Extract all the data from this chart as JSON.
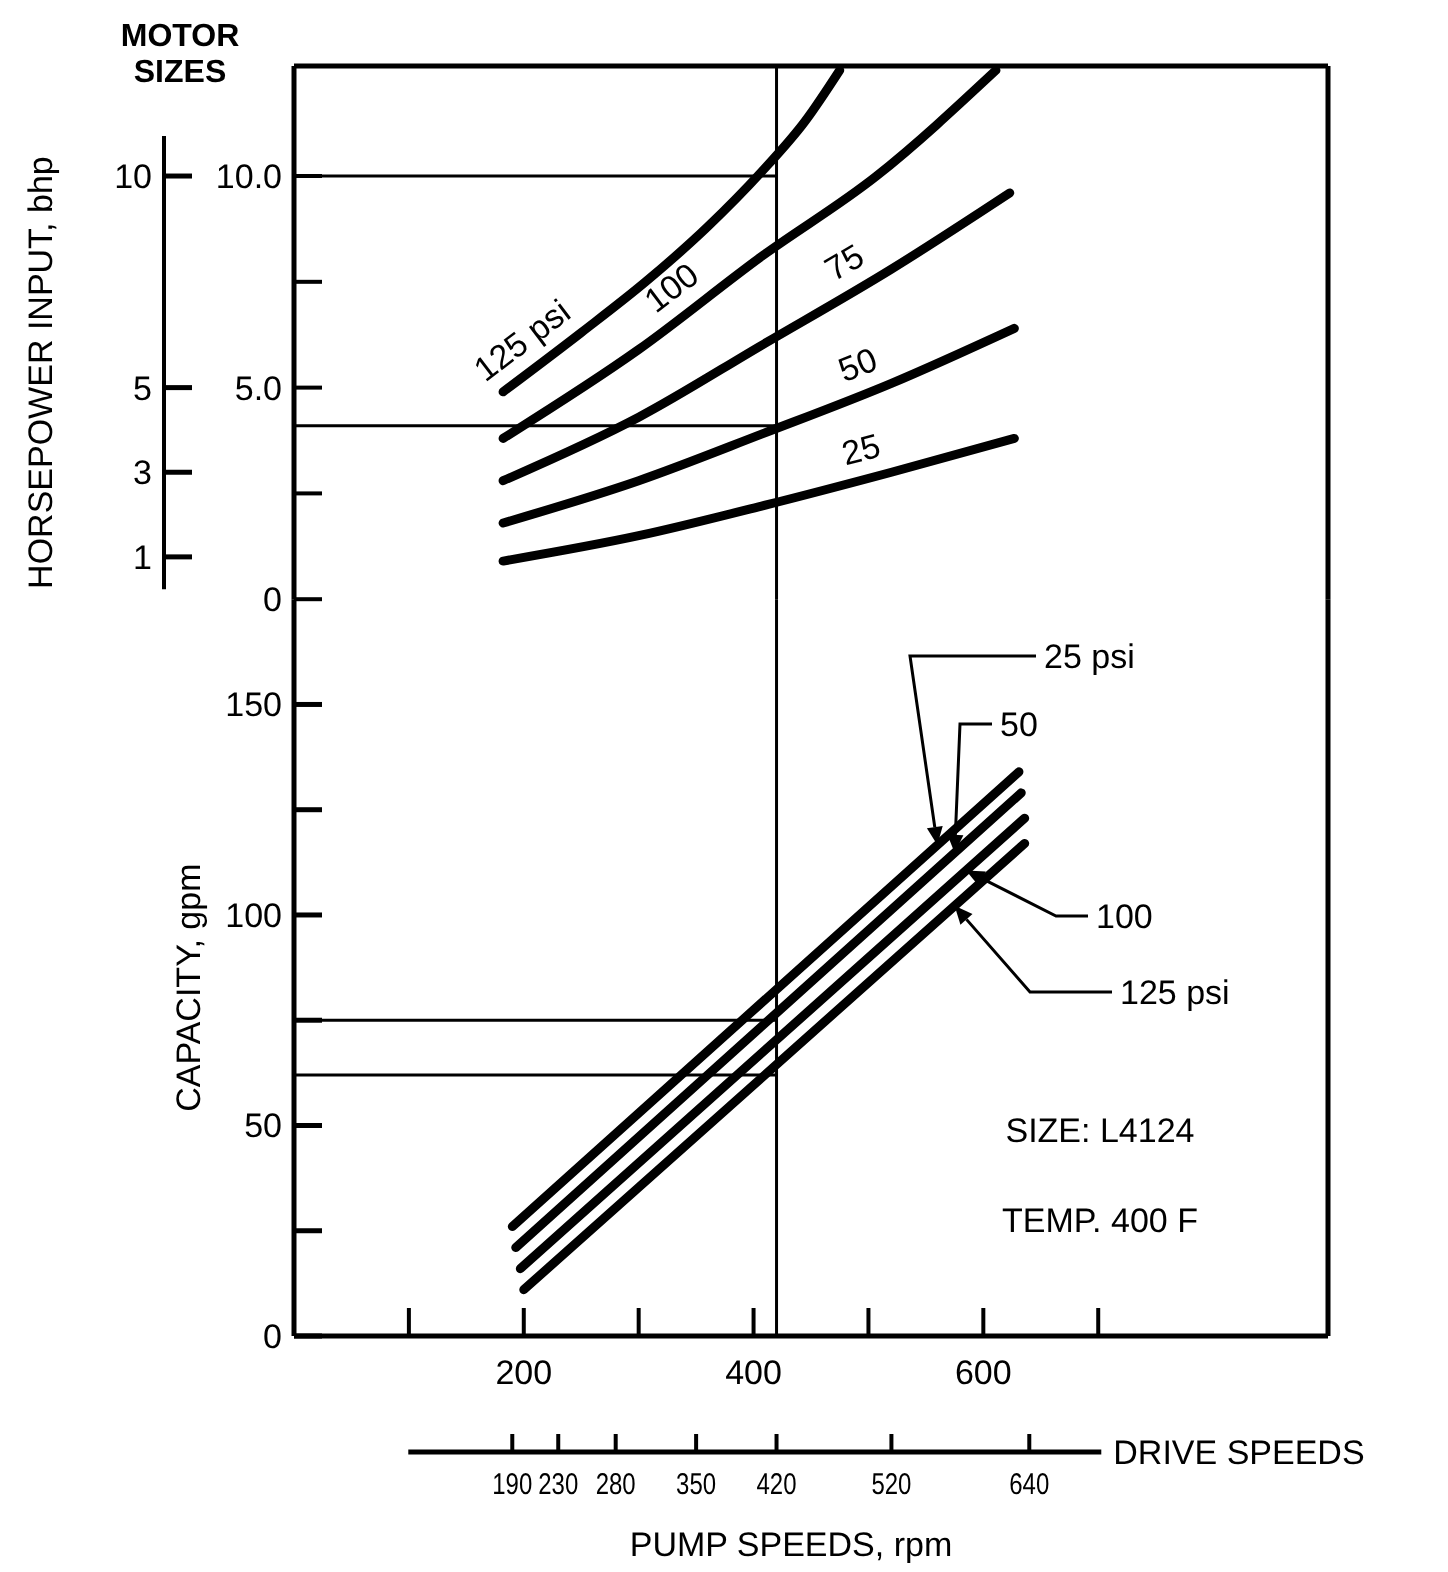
{
  "chart_data": [
    {
      "type": "line",
      "ylabel": "HORSEPOWER INPUT, bhp",
      "annotations": [
        "MOTOR SIZES"
      ],
      "xlim": [
        0,
        900
      ],
      "ylim": [
        0,
        12.6
      ],
      "yticks": [
        1,
        3,
        5,
        10
      ],
      "y2lim": [
        0,
        12.6
      ],
      "y2ticks": [
        0,
        {
          "value": 2.5,
          "label": null
        },
        {
          "value": 5,
          "label": "5.0"
        },
        {
          "value": 7.5,
          "label": null
        },
        {
          "value": 10,
          "label": "10.0"
        }
      ],
      "tick_labels": "y",
      "series": [
        {
          "name": "125 psi",
          "color": "#000000",
          "x": [
            182,
            250,
            306,
            360,
            407,
            445,
            475
          ],
          "values": [
            4.9,
            6.3,
            7.5,
            8.8,
            10.1,
            11.3,
            12.5
          ]
        },
        {
          "name": "100",
          "color": "#000000",
          "x": [
            182,
            300,
            407,
            507,
            611
          ],
          "values": [
            3.8,
            5.9,
            8.1,
            10.0,
            12.5
          ]
        },
        {
          "name": "75",
          "color": "#000000",
          "x": [
            182,
            300,
            407,
            520,
            623
          ],
          "values": [
            2.8,
            4.3,
            6.0,
            7.8,
            9.6
          ]
        },
        {
          "name": "50",
          "color": "#000000",
          "x": [
            182,
            300,
            407,
            520,
            627
          ],
          "values": [
            1.8,
            2.8,
            3.9,
            5.1,
            6.4
          ]
        },
        {
          "name": "25",
          "color": "#000000",
          "x": [
            182,
            300,
            407,
            520,
            627
          ],
          "values": [
            0.9,
            1.5,
            2.2,
            3.0,
            3.8
          ]
        }
      ],
      "ref_lines": [
        {
          "axis": "x",
          "value": 420,
          "color": "#000000"
        },
        {
          "axis": "y",
          "value": 10,
          "color": "#000000"
        },
        {
          "axis": "y",
          "value": 4.1,
          "color": "#000000"
        }
      ]
    },
    {
      "type": "line",
      "xlabel": "PUMP SPEEDS, rpm",
      "ylabel": "CAPACITY, gpm",
      "xlim": [
        0,
        900
      ],
      "xticks": [
        {
          "value": 100,
          "label": null
        },
        200,
        {
          "value": 300,
          "label": null
        },
        400,
        {
          "value": 500,
          "label": null
        },
        600,
        {
          "value": 700,
          "label": null
        }
      ],
      "ylim": [
        0,
        175
      ],
      "yticks": [
        0,
        {
          "value": 25,
          "label": null
        },
        50,
        {
          "value": 75,
          "label": null
        },
        100,
        {
          "value": 125,
          "label": null
        },
        150
      ],
      "x2lim": [
        0,
        900
      ],
      "x2ticks": [
        190,
        230,
        280,
        350,
        420,
        520,
        640
      ],
      "x2label": "DRIVE SPEEDS",
      "series": [
        {
          "name": "25 psi",
          "color": "#000000",
          "x": [
            190,
            631
          ],
          "values": [
            26,
            134
          ]
        },
        {
          "name": "50",
          "color": "#000000",
          "x": [
            193,
            633
          ],
          "values": [
            21,
            129
          ]
        },
        {
          "name": "100",
          "color": "#000000",
          "x": [
            197,
            636
          ],
          "values": [
            16,
            123
          ]
        },
        {
          "name": "125 psi",
          "color": "#000000",
          "x": [
            200,
            636
          ],
          "values": [
            11,
            117
          ]
        }
      ],
      "ref_lines": [
        {
          "axis": "x",
          "value": 420,
          "color": "#000000"
        },
        {
          "axis": "y",
          "value": 75,
          "color": "#000000"
        },
        {
          "axis": "y",
          "value": 62,
          "color": "#000000"
        }
      ],
      "annotations": [
        "SIZE: L4124",
        "TEMP. 400 F"
      ]
    }
  ]
}
